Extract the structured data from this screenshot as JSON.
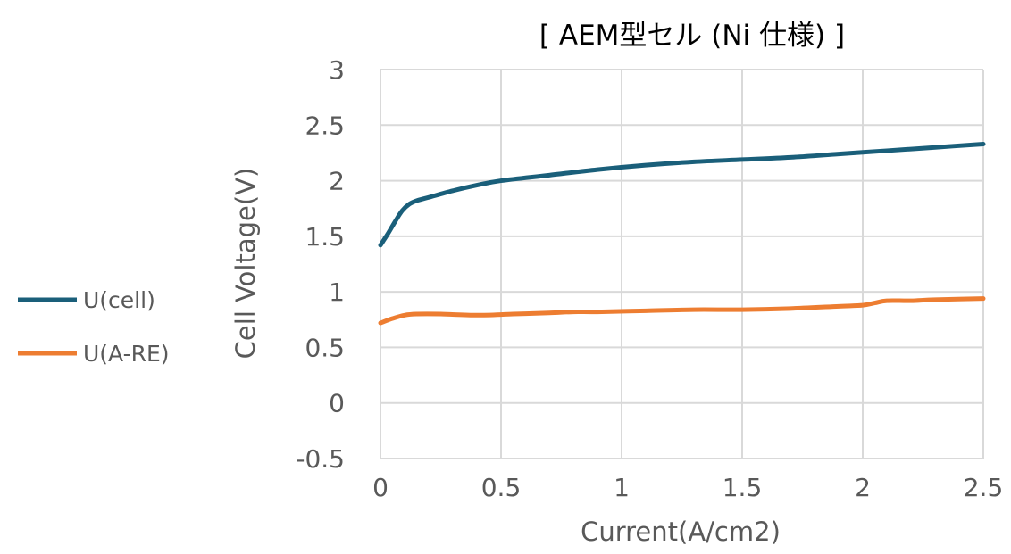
{
  "chart_data": {
    "type": "line",
    "title": "[ AEM型セル (Ni 仕様) ]",
    "xlabel": "Current(A/cm2)",
    "ylabel": "Cell Voltage(V)",
    "xlim": [
      0,
      2.5
    ],
    "ylim": [
      -0.5,
      3
    ],
    "xticks": [
      0,
      0.5,
      1,
      1.5,
      2,
      2.5
    ],
    "xtick_labels": [
      "0",
      "0.5",
      "1",
      "1.5",
      "2",
      "2.5"
    ],
    "yticks": [
      -0.5,
      0,
      0.5,
      1,
      1.5,
      2,
      2.5,
      3
    ],
    "ytick_labels": [
      "-0.5",
      "0",
      "0.5",
      "1",
      "1.5",
      "2",
      "2.5",
      "3"
    ],
    "grid": true,
    "legend_position": "left",
    "series": [
      {
        "name": "U(cell)",
        "color": "#1a5f7a",
        "x": [
          0.0,
          0.03,
          0.06,
          0.09,
          0.12,
          0.15,
          0.2,
          0.3,
          0.4,
          0.5,
          0.7,
          0.9,
          1.1,
          1.3,
          1.5,
          1.7,
          1.9,
          2.1,
          2.3,
          2.5
        ],
        "y": [
          1.42,
          1.52,
          1.63,
          1.73,
          1.79,
          1.82,
          1.85,
          1.91,
          1.96,
          2.0,
          2.05,
          2.1,
          2.14,
          2.17,
          2.19,
          2.21,
          2.24,
          2.27,
          2.3,
          2.33
        ]
      },
      {
        "name": "U(A-RE)",
        "color": "#ed7d31",
        "x": [
          0.0,
          0.05,
          0.1,
          0.15,
          0.25,
          0.4,
          0.55,
          0.7,
          0.8,
          0.9,
          1.1,
          1.3,
          1.5,
          1.7,
          1.9,
          2.0,
          2.05,
          2.1,
          2.2,
          2.3,
          2.5
        ],
        "y": [
          0.72,
          0.76,
          0.79,
          0.8,
          0.8,
          0.79,
          0.8,
          0.81,
          0.82,
          0.82,
          0.83,
          0.84,
          0.84,
          0.85,
          0.87,
          0.88,
          0.9,
          0.92,
          0.92,
          0.93,
          0.94
        ]
      }
    ]
  }
}
